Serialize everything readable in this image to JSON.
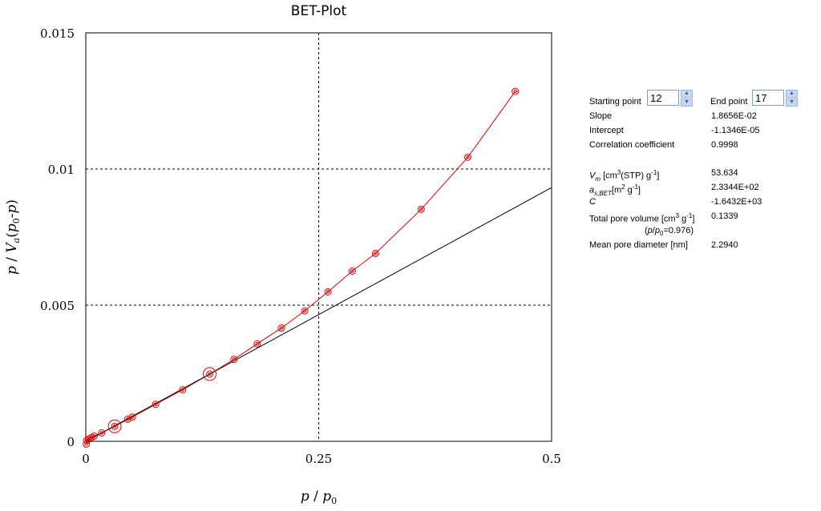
{
  "chart_data": {
    "type": "scatter",
    "title": "BET-Plot",
    "xlabel_parts": [
      "p",
      "/",
      "p",
      "0"
    ],
    "ylabel_parts": [
      "p",
      "/",
      "V",
      "a",
      "(",
      "p",
      "0",
      "-",
      "p",
      ")"
    ],
    "xlim": [
      0,
      0.5
    ],
    "ylim": [
      0,
      0.015
    ],
    "xticks": [
      0,
      0.25,
      0.5
    ],
    "xtick_labels": [
      "0",
      "0.25",
      "0.5"
    ],
    "yticks": [
      0,
      0.005,
      0.01,
      0.015
    ],
    "ytick_labels": [
      "0",
      "0.005",
      "0.01",
      "0.015"
    ],
    "grid": "dashed at x=0.25, y=0.005, y=0.01",
    "series": [
      {
        "color": "#e00000",
        "marker": "double-circle",
        "x": [
          0.0005,
          0.001,
          0.003,
          0.006,
          0.009,
          0.017,
          0.031,
          0.045,
          0.05,
          0.075,
          0.104,
          0.133,
          0.159,
          0.184,
          0.21,
          0.235,
          0.26,
          0.286,
          0.311,
          0.36,
          0.41,
          0.461
        ],
        "y": [
          -0.0001,
          3e-05,
          8e-05,
          0.00014,
          0.00019,
          0.00031,
          0.00055,
          0.00081,
          0.00089,
          0.00136,
          0.00189,
          0.00247,
          0.00301,
          0.00358,
          0.00416,
          0.00479,
          0.00549,
          0.00625,
          0.0069,
          0.00852,
          0.01043,
          0.01285
        ]
      },
      {
        "color": "#000000",
        "marker": "none",
        "x": [
          0,
          0.5
        ],
        "y": [
          -1.13e-05,
          0.0093167
        ]
      }
    ],
    "highlight_points": [
      {
        "x": 0.031,
        "y": 0.00055
      },
      {
        "x": 0.133,
        "y": 0.00247
      }
    ]
  },
  "panel": {
    "start_label": "Starting point",
    "start_value": "12",
    "end_label": "End point",
    "end_value": "17",
    "slope_label": "Slope",
    "slope_value": "1.8656E-02",
    "intercept_label": "Intercept",
    "intercept_value": "-1.1346E-05",
    "corr_label": "Correlation coefficient",
    "corr_value": "0.9998",
    "vm_sym": "V",
    "vm_sub": "m",
    "vm_unit_a": "[cm",
    "vm_unit_sup": "3",
    "vm_unit_b": "(STP) g",
    "vm_unit_sup2": "-1",
    "vm_unit_c": "]",
    "vm_value": "53.634",
    "as_sym": "a",
    "as_sub": "s,BET",
    "as_unit_a": "[m",
    "as_unit_sup": "2",
    "as_unit_b": " g",
    "as_unit_sup2": "-1",
    "as_unit_c": "]",
    "as_value": "2.3344E+02",
    "c_sym": "C",
    "c_value": "-1.6432E+03",
    "tpv_label_a": "Total pore volume [cm",
    "tpv_sup": "3",
    "tpv_label_b": " g",
    "tpv_sup2": "-1",
    "tpv_label_c": "]",
    "tpv_value": "0.1339",
    "pp0_open": "(",
    "pp0_p": "p",
    "pp0_slash": "/",
    "pp0_p2": "p",
    "pp0_sub": "0",
    "pp0_rest": "=0.976)",
    "mpd_label": "Mean pore diameter [nm]",
    "mpd_value": "2.2940"
  }
}
